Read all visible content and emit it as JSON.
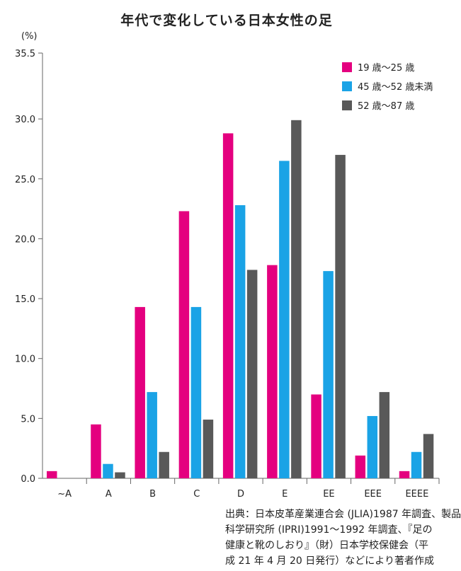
{
  "title": "年代で変化している日本女性の足",
  "unit": "(%)",
  "colors": {
    "series1": "#e4007f",
    "series2": "#1aa3e6",
    "series3": "#595959",
    "axis": "#666666"
  },
  "source": {
    "lines": [
      "出典：日本皮革産業連合会 (JLIA)1987 年調査、製品",
      "科学研究所 (IPRI)1991～1992 年調査、『足の",
      "健康と靴のしおり』（財）日本学校保健会（平",
      "成 21 年 4 月 20 日発行）などにより著者作成"
    ]
  },
  "chart_data": {
    "type": "bar",
    "title": "年代で変化している日本女性の足",
    "ylabel": "(%)",
    "xlabel": "",
    "ylim": [
      0,
      35.5
    ],
    "yticks": [
      "0.0",
      "5.0",
      "10.0",
      "15.0",
      "20.0",
      "25.0",
      "30.0",
      "35.5"
    ],
    "ytick_values": [
      0,
      5,
      10,
      15,
      20,
      25,
      30,
      35.5
    ],
    "categories": [
      "~A",
      "A",
      "B",
      "C",
      "D",
      "E",
      "EE",
      "EEE",
      "EEEE"
    ],
    "series": [
      {
        "name": "19 歳～25 歳",
        "values": [
          0.6,
          4.5,
          14.3,
          22.3,
          28.8,
          17.8,
          7.0,
          1.9,
          0.6
        ]
      },
      {
        "name": "45 歳～52 歳未満",
        "values": [
          0,
          1.2,
          7.2,
          14.3,
          22.8,
          26.5,
          17.3,
          5.2,
          2.2
        ]
      },
      {
        "name": "52 歳～87 歳",
        "values": [
          0,
          0.5,
          2.2,
          4.9,
          17.4,
          29.9,
          27.0,
          7.2,
          3.7
        ]
      }
    ],
    "legend_position": "top-right",
    "grid": false
  }
}
